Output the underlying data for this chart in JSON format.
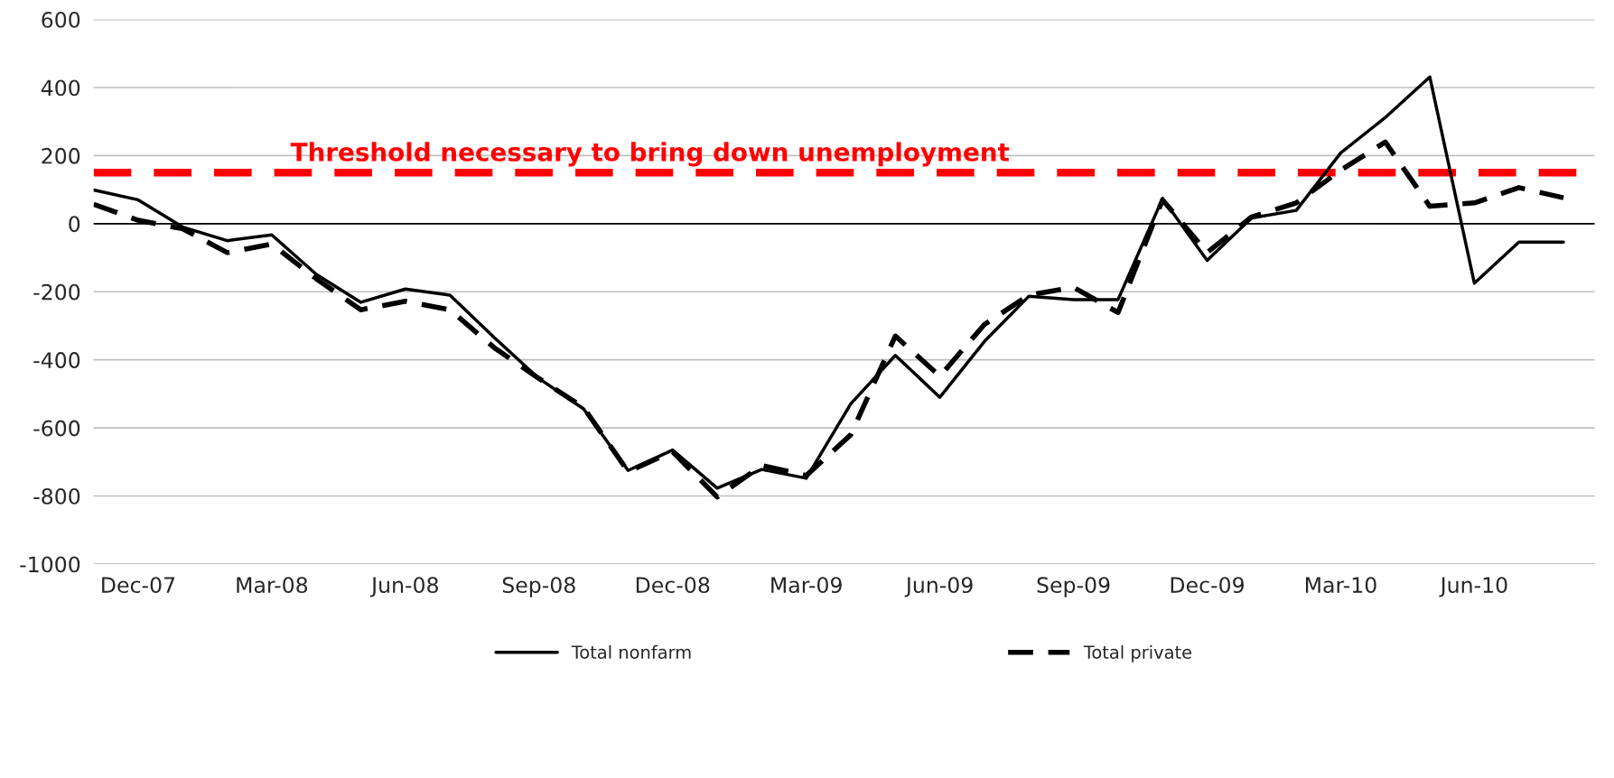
{
  "chart_data": {
    "type": "line",
    "categories": [
      null,
      "Dec-07",
      null,
      null,
      "Mar-08",
      null,
      null,
      "Jun-08",
      null,
      null,
      "Sep-08",
      null,
      null,
      "Dec-08",
      null,
      null,
      "Mar-09",
      null,
      null,
      "Jun-09",
      null,
      null,
      "Sep-09",
      null,
      null,
      "Dec-09",
      null,
      null,
      "Mar-10",
      null,
      null,
      "Jun-10",
      null,
      null
    ],
    "series": [
      {
        "name": "Total nonfarm",
        "color": "#000000",
        "line_style": "solid",
        "values": [
          99,
          70,
          -10,
          -50,
          -33,
          -149,
          -231,
          -192,
          -210,
          -335,
          -455,
          -544,
          -725,
          -665,
          -777,
          -722,
          -748,
          -529,
          -387,
          -510,
          -346,
          -213,
          -223,
          -223,
          74,
          -108,
          17,
          39,
          208,
          312,
          431,
          -175,
          -54,
          -54
        ]
      },
      {
        "name": "Total private",
        "color": "#000000",
        "line_style": "dashed",
        "values": [
          57,
          10,
          -15,
          -85,
          -60,
          -162,
          -253,
          -228,
          -253,
          -365,
          -455,
          -540,
          -728,
          -670,
          -803,
          -710,
          -740,
          -620,
          -330,
          -448,
          -296,
          -210,
          -187,
          -261,
          70,
          -85,
          20,
          61,
          157,
          240,
          51,
          61,
          106,
          76
        ]
      }
    ],
    "ylim": [
      -1000,
      600
    ],
    "yticks": [
      -1000,
      -800,
      -600,
      -400,
      -200,
      0,
      200,
      400,
      600
    ],
    "grid": "y",
    "legend": "bottom",
    "marker": "none",
    "ref_lines": [
      {
        "axis": "y",
        "value": 150,
        "label": "Threshold necessary to bring down unemployment",
        "color": "#ff0000",
        "line_style": "dashed"
      },
      {
        "axis": "y",
        "value": 0,
        "color": "#000000",
        "line_style": "solid"
      }
    ]
  }
}
